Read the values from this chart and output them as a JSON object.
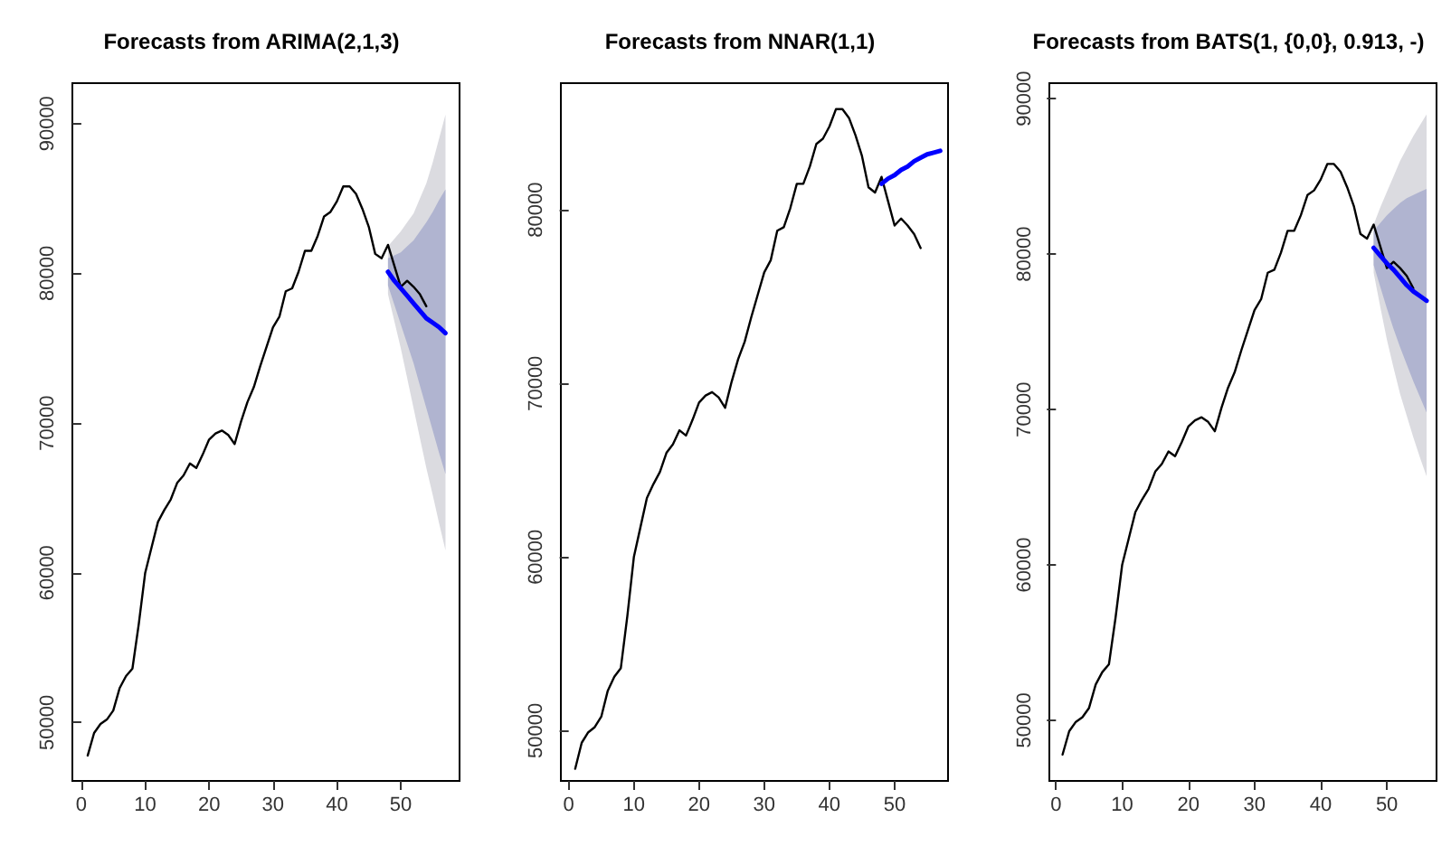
{
  "chart_data": [
    {
      "type": "line",
      "title": "Forecasts from ARIMA(2,1,3)",
      "xlim": [
        -1.4,
        59.2
      ],
      "xticks": [
        0,
        10,
        20,
        30,
        40,
        50
      ],
      "ylim": [
        46100,
        92700
      ],
      "yticks": [
        50000,
        60000,
        70000,
        80000,
        90000
      ],
      "series": [
        {
          "color": "#dbdbe0",
          "x": [
            48,
            49,
            50,
            51,
            52,
            53,
            54,
            55,
            56,
            57
          ],
          "values": [
            null,
            null,
            null,
            null,
            null,
            null,
            null,
            null,
            null,
            null
          ],
          "lower": [
            78600,
            76800,
            75000,
            73000,
            71000,
            69000,
            67000,
            65200,
            63300,
            61500
          ],
          "upper": [
            81800,
            82300,
            82800,
            83400,
            84000,
            85000,
            86000,
            87400,
            89000,
            90600
          ]
        },
        {
          "color": "#b0b4d0",
          "x": [
            48,
            49,
            50,
            51,
            52,
            53,
            54,
            55,
            56,
            57
          ],
          "values": [
            null,
            null,
            null,
            null,
            null,
            null,
            null,
            null,
            null,
            null
          ],
          "lower": [
            79200,
            77900,
            76600,
            75300,
            74000,
            72500,
            71000,
            69500,
            68000,
            66600
          ],
          "upper": [
            81000,
            81200,
            81400,
            81800,
            82200,
            82800,
            83400,
            84100,
            84900,
            85600
          ]
        },
        {
          "color": "#000000",
          "x": [
            1,
            2,
            3,
            4,
            5,
            6,
            7,
            8,
            9,
            10,
            11,
            12,
            13,
            14,
            15,
            16,
            17,
            18,
            19,
            20,
            21,
            22,
            23,
            24,
            25,
            26,
            27,
            28,
            29,
            30,
            31,
            32,
            33,
            34,
            35,
            36,
            37,
            38,
            39,
            40,
            41,
            42,
            43,
            44,
            45,
            46,
            47,
            48,
            49,
            50,
            51,
            52,
            53,
            54
          ],
          "values": [
            47800,
            49300,
            49900,
            50200,
            50800,
            52300,
            53100,
            53600,
            56600,
            60000,
            61700,
            63400,
            64200,
            64900,
            66000,
            66500,
            67300,
            67000,
            67900,
            68900,
            69300,
            69500,
            69200,
            68600,
            70100,
            71400,
            72400,
            73800,
            75100,
            76400,
            77100,
            78800,
            79000,
            80100,
            81500,
            81500,
            82500,
            83800,
            84100,
            84800,
            85800,
            85800,
            85300,
            84300,
            83100,
            81300,
            81000,
            81900,
            80500,
            79100,
            79500,
            79100,
            78600,
            77800
          ]
        },
        {
          "color": "#0000ff",
          "x": [
            48,
            49,
            50,
            51,
            52,
            53,
            54,
            55,
            56,
            57
          ],
          "values": [
            80100,
            79500,
            79000,
            78500,
            78000,
            77500,
            77000,
            76700,
            76400,
            76000
          ]
        }
      ]
    },
    {
      "type": "line",
      "title": "Forecasts from NNAR(1,1)",
      "xlim": [
        -1.2,
        58.2
      ],
      "xticks": [
        0,
        10,
        20,
        30,
        40,
        50
      ],
      "ylim": [
        47100,
        87300
      ],
      "yticks": [
        50000,
        60000,
        70000,
        80000
      ],
      "series": [
        {
          "color": "#000000",
          "x": [
            1,
            2,
            3,
            4,
            5,
            6,
            7,
            8,
            9,
            10,
            11,
            12,
            13,
            14,
            15,
            16,
            17,
            18,
            19,
            20,
            21,
            22,
            23,
            24,
            25,
            26,
            27,
            28,
            29,
            30,
            31,
            32,
            33,
            34,
            35,
            36,
            37,
            38,
            39,
            40,
            41,
            42,
            43,
            44,
            45,
            46,
            47,
            48,
            49,
            50,
            51,
            52,
            53,
            54
          ],
          "values": [
            47800,
            49300,
            49900,
            50200,
            50800,
            52300,
            53100,
            53600,
            56600,
            60000,
            61700,
            63400,
            64200,
            64900,
            66000,
            66500,
            67300,
            67000,
            67900,
            68900,
            69300,
            69500,
            69200,
            68600,
            70100,
            71400,
            72400,
            73800,
            75100,
            76400,
            77100,
            78800,
            79000,
            80100,
            81500,
            81500,
            82500,
            83800,
            84100,
            84800,
            85800,
            85800,
            85300,
            84300,
            83100,
            81300,
            81000,
            81900,
            80500,
            79100,
            79500,
            79100,
            78600,
            77800
          ]
        },
        {
          "color": "#0000ff",
          "x": [
            48,
            49,
            50,
            51,
            52,
            53,
            54,
            55,
            56,
            57
          ],
          "values": [
            81500,
            81800,
            82000,
            82300,
            82500,
            82800,
            83000,
            83200,
            83300,
            83400
          ]
        }
      ]
    },
    {
      "type": "line",
      "title": "Forecasts from BATS(1, {0,0}, 0.913, -)",
      "xlim": [
        -1.0,
        57.5
      ],
      "xticks": [
        0,
        10,
        20,
        30,
        40,
        50
      ],
      "ylim": [
        46100,
        91000
      ],
      "yticks": [
        50000,
        60000,
        70000,
        80000,
        90000
      ],
      "series": [
        {
          "color": "#dbdbe0",
          "x": [
            48,
            49,
            50,
            51,
            52,
            53,
            54,
            55,
            56
          ],
          "values": [
            null,
            null,
            null,
            null,
            null,
            null,
            null,
            null,
            null
          ],
          "lower": [
            78800,
            76600,
            74500,
            72700,
            71000,
            69600,
            68200,
            66900,
            65700
          ],
          "upper": [
            81900,
            83000,
            84000,
            85000,
            86000,
            86800,
            87600,
            88300,
            89000
          ]
        },
        {
          "color": "#b0b4d0",
          "x": [
            48,
            49,
            50,
            51,
            52,
            53,
            54,
            55,
            56
          ],
          "values": [
            null,
            null,
            null,
            null,
            null,
            null,
            null,
            null,
            null
          ],
          "lower": [
            79300,
            77900,
            76500,
            75200,
            74000,
            72900,
            71800,
            70800,
            69800
          ],
          "upper": [
            81500,
            82000,
            82500,
            82900,
            83300,
            83600,
            83800,
            84000,
            84200
          ]
        },
        {
          "color": "#000000",
          "x": [
            1,
            2,
            3,
            4,
            5,
            6,
            7,
            8,
            9,
            10,
            11,
            12,
            13,
            14,
            15,
            16,
            17,
            18,
            19,
            20,
            21,
            22,
            23,
            24,
            25,
            26,
            27,
            28,
            29,
            30,
            31,
            32,
            33,
            34,
            35,
            36,
            37,
            38,
            39,
            40,
            41,
            42,
            43,
            44,
            45,
            46,
            47,
            48,
            49,
            50,
            51,
            52,
            53,
            54
          ],
          "values": [
            47800,
            49300,
            49900,
            50200,
            50800,
            52300,
            53100,
            53600,
            56600,
            60000,
            61700,
            63400,
            64200,
            64900,
            66000,
            66500,
            67300,
            67000,
            67900,
            68900,
            69300,
            69500,
            69200,
            68600,
            70100,
            71400,
            72400,
            73800,
            75100,
            76400,
            77100,
            78800,
            79000,
            80100,
            81500,
            81500,
            82500,
            83800,
            84100,
            84800,
            85800,
            85800,
            85300,
            84300,
            83100,
            81300,
            81000,
            81900,
            80500,
            79100,
            79500,
            79100,
            78600,
            77800
          ]
        },
        {
          "color": "#0000ff",
          "x": [
            48,
            49,
            50,
            51,
            52,
            53,
            54,
            55,
            56
          ],
          "values": [
            80400,
            79900,
            79400,
            79000,
            78500,
            78000,
            77600,
            77300,
            77000
          ]
        }
      ]
    }
  ]
}
